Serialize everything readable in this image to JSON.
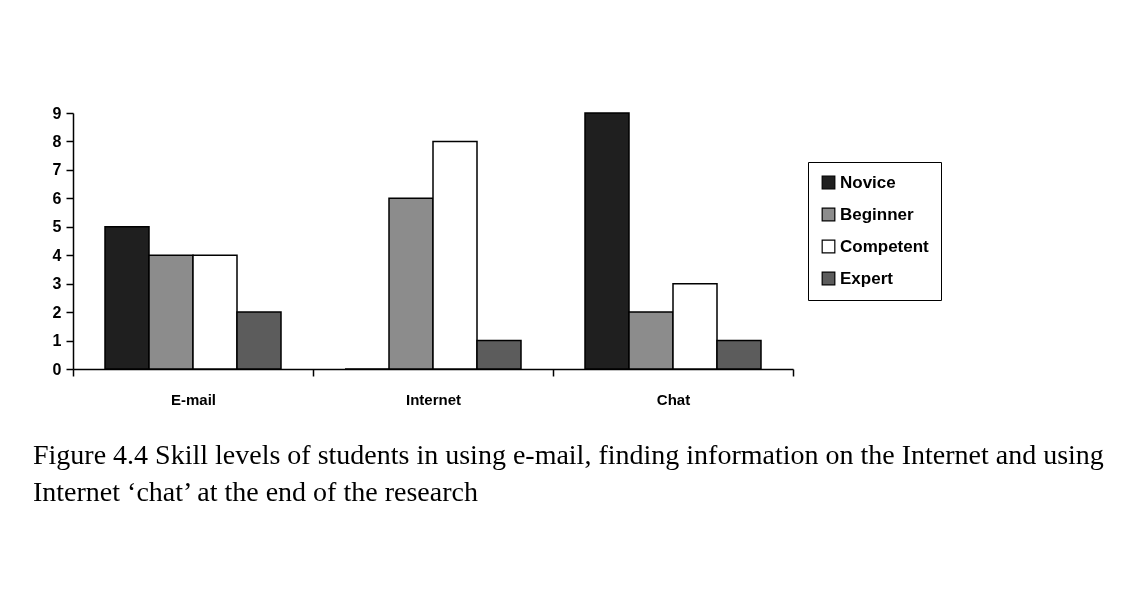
{
  "chart_data": {
    "type": "bar",
    "categories": [
      "E-mail",
      "Internet",
      "Chat"
    ],
    "series": [
      {
        "name": "Novice",
        "color": "#1f1f1f",
        "values": [
          5,
          0,
          9
        ]
      },
      {
        "name": "Beginner",
        "color": "#8c8c8c",
        "values": [
          4,
          6,
          2
        ]
      },
      {
        "name": "Competent",
        "color": "#ffffff",
        "values": [
          4,
          8,
          3
        ]
      },
      {
        "name": "Expert",
        "color": "#5c5c5c",
        "values": [
          2,
          1,
          1
        ]
      }
    ],
    "ylim": [
      0,
      9
    ],
    "yticks": [
      0,
      1,
      2,
      3,
      4,
      5,
      6,
      7,
      8,
      9
    ],
    "grid": false,
    "legend": "right",
    "annotations": [
      "Figure 4.4 Skill levels of students in using e-mail, finding information on the Internet and using Internet ‘chat’ at the end of the research"
    ]
  }
}
